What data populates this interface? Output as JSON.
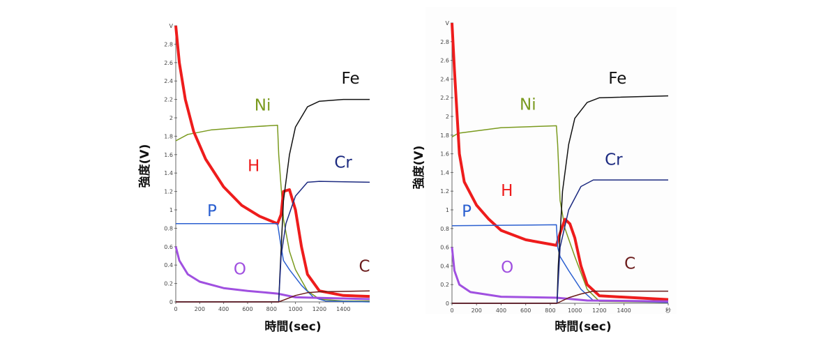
{
  "chart_data": [
    {
      "type": "line",
      "title": "",
      "xlabel": "時間(sec)",
      "ylabel": "強度(V)",
      "xlim": [
        0,
        1620
      ],
      "ylim": [
        0,
        3.0
      ],
      "xticks": [
        "0",
        "200",
        "400",
        "600",
        "800",
        "1000",
        "1200",
        "1400"
      ],
      "xtick_values": [
        0,
        200,
        400,
        600,
        800,
        1000,
        1200,
        1400
      ],
      "yticks": [
        "0",
        "0.2",
        "0.4",
        "0.6",
        "0.8",
        "1",
        "1.2",
        "1.4",
        "1.6",
        "1.8",
        "2",
        "2.2",
        "2.4",
        "2.6",
        "2.8",
        "V"
      ],
      "ytick_values": [
        0,
        0.2,
        0.4,
        0.6,
        0.8,
        1,
        1.2,
        1.4,
        1.6,
        1.8,
        2,
        2.2,
        2.4,
        2.6,
        2.8,
        3.0
      ],
      "grid": false,
      "series": [
        {
          "name": "Ni",
          "color": "#7a9a1e",
          "width": 1.5,
          "label_at": [
            657,
            2.08
          ],
          "points": [
            [
              0,
              1.75
            ],
            [
              100,
              1.82
            ],
            [
              300,
              1.87
            ],
            [
              600,
              1.9
            ],
            [
              850,
              1.92
            ],
            [
              860,
              1.6
            ],
            [
              900,
              0.9
            ],
            [
              950,
              0.55
            ],
            [
              1000,
              0.35
            ],
            [
              1100,
              0.12
            ],
            [
              1200,
              0.03
            ],
            [
              1400,
              0.01
            ],
            [
              1620,
              0.01
            ]
          ]
        },
        {
          "name": "H",
          "color": "#ee1c1c",
          "width": 4,
          "label_at": [
            600,
            1.42
          ],
          "points": [
            [
              0,
              3.0
            ],
            [
              30,
              2.6
            ],
            [
              80,
              2.2
            ],
            [
              150,
              1.85
            ],
            [
              250,
              1.55
            ],
            [
              400,
              1.25
            ],
            [
              550,
              1.05
            ],
            [
              700,
              0.93
            ],
            [
              850,
              0.85
            ],
            [
              880,
              0.95
            ],
            [
              900,
              1.2
            ],
            [
              950,
              1.22
            ],
            [
              1000,
              1.0
            ],
            [
              1050,
              0.6
            ],
            [
              1100,
              0.3
            ],
            [
              1200,
              0.12
            ],
            [
              1400,
              0.07
            ],
            [
              1620,
              0.06
            ]
          ]
        },
        {
          "name": "P",
          "color": "#2a5fd0",
          "width": 1.5,
          "label_at": [
            262,
            0.93
          ],
          "points": [
            [
              0,
              0.85
            ],
            [
              850,
              0.85
            ],
            [
              880,
              0.6
            ],
            [
              900,
              0.45
            ],
            [
              950,
              0.35
            ],
            [
              1050,
              0.18
            ],
            [
              1150,
              0.05
            ],
            [
              1250,
              0.01
            ],
            [
              1620,
              0.0
            ]
          ]
        },
        {
          "name": "O",
          "color": "#a050e0",
          "width": 3,
          "label_at": [
            483,
            0.3
          ],
          "points": [
            [
              0,
              0.6
            ],
            [
              30,
              0.45
            ],
            [
              100,
              0.3
            ],
            [
              200,
              0.22
            ],
            [
              400,
              0.15
            ],
            [
              600,
              0.12
            ],
            [
              850,
              0.09
            ],
            [
              1000,
              0.05
            ],
            [
              1620,
              0.03
            ]
          ]
        },
        {
          "name": "Fe",
          "color": "#111111",
          "width": 1.5,
          "label_at": [
            1384,
            2.37
          ],
          "points": [
            [
              0,
              0
            ],
            [
              860,
              0
            ],
            [
              870,
              0.3
            ],
            [
              900,
              1.1
            ],
            [
              950,
              1.6
            ],
            [
              1000,
              1.9
            ],
            [
              1100,
              2.12
            ],
            [
              1200,
              2.18
            ],
            [
              1400,
              2.2
            ],
            [
              1620,
              2.2
            ]
          ]
        },
        {
          "name": "Cr",
          "color": "#1c2a80",
          "width": 1.5,
          "label_at": [
            1325,
            1.46
          ],
          "points": [
            [
              0,
              0
            ],
            [
              860,
              0
            ],
            [
              880,
              0.5
            ],
            [
              920,
              0.85
            ],
            [
              1000,
              1.15
            ],
            [
              1100,
              1.3
            ],
            [
              1200,
              1.31
            ],
            [
              1620,
              1.3
            ]
          ]
        },
        {
          "name": "C",
          "color": "#6a1a1a",
          "width": 1.5,
          "label_at": [
            1530,
            0.33
          ],
          "points": [
            [
              0,
              0
            ],
            [
              860,
              0
            ],
            [
              900,
              0.02
            ],
            [
              1000,
              0.07
            ],
            [
              1100,
              0.1
            ],
            [
              1200,
              0.11
            ],
            [
              1620,
              0.12
            ]
          ]
        }
      ]
    },
    {
      "type": "line",
      "title": "",
      "xlabel": "時間(sec)",
      "ylabel": "強度(V)",
      "xlim": [
        0,
        1760
      ],
      "ylim": [
        0,
        3.0
      ],
      "xticks": [
        "0",
        "200",
        "400",
        "600",
        "800",
        "1000",
        "1200",
        "1400",
        "秒"
      ],
      "xtick_values": [
        0,
        200,
        400,
        600,
        800,
        1000,
        1200,
        1400,
        1760
      ],
      "yticks": [
        "0",
        "0.2",
        "0.4",
        "0.6",
        "0.8",
        "1",
        "1.2",
        "1.4",
        "1.6",
        "1.8",
        "2",
        "2.2",
        "2.4",
        "2.6",
        "2.8",
        "V"
      ],
      "ytick_values": [
        0,
        0.2,
        0.4,
        0.6,
        0.8,
        1,
        1.2,
        1.4,
        1.6,
        1.8,
        2,
        2.2,
        2.4,
        2.6,
        2.8,
        3.0
      ],
      "grid": false,
      "series": [
        {
          "name": "Ni",
          "color": "#7a9a1e",
          "width": 1.5,
          "label_at": [
            551,
            2.07
          ],
          "points": [
            [
              0,
              1.78
            ],
            [
              50,
              1.82
            ],
            [
              400,
              1.88
            ],
            [
              850,
              1.9
            ],
            [
              860,
              1.7
            ],
            [
              880,
              1.1
            ],
            [
              920,
              0.8
            ],
            [
              1000,
              0.5
            ],
            [
              1100,
              0.15
            ],
            [
              1200,
              0.02
            ],
            [
              1760,
              0.01
            ]
          ]
        },
        {
          "name": "H",
          "color": "#ee1c1c",
          "width": 4,
          "label_at": [
            398,
            1.15
          ],
          "points": [
            [
              0,
              3.0
            ],
            [
              20,
              2.5
            ],
            [
              60,
              1.6
            ],
            [
              100,
              1.3
            ],
            [
              200,
              1.05
            ],
            [
              300,
              0.9
            ],
            [
              400,
              0.78
            ],
            [
              600,
              0.68
            ],
            [
              850,
              0.62
            ],
            [
              880,
              0.75
            ],
            [
              920,
              0.9
            ],
            [
              960,
              0.85
            ],
            [
              1000,
              0.7
            ],
            [
              1050,
              0.4
            ],
            [
              1100,
              0.2
            ],
            [
              1200,
              0.08
            ],
            [
              1760,
              0.04
            ]
          ]
        },
        {
          "name": "P",
          "color": "#2a5fd0",
          "width": 1.5,
          "label_at": [
            80,
            0.93
          ],
          "points": [
            [
              0,
              0.83
            ],
            [
              850,
              0.84
            ],
            [
              860,
              0.6
            ],
            [
              880,
              0.5
            ],
            [
              950,
              0.35
            ],
            [
              1050,
              0.15
            ],
            [
              1150,
              0.03
            ],
            [
              1760,
              0.01
            ]
          ]
        },
        {
          "name": "O",
          "color": "#a050e0",
          "width": 3,
          "label_at": [
            398,
            0.33
          ],
          "points": [
            [
              0,
              0.6
            ],
            [
              20,
              0.35
            ],
            [
              60,
              0.2
            ],
            [
              150,
              0.12
            ],
            [
              400,
              0.07
            ],
            [
              850,
              0.06
            ],
            [
              1100,
              0.03
            ],
            [
              1760,
              0.02
            ]
          ]
        },
        {
          "name": "Fe",
          "color": "#111111",
          "width": 1.5,
          "label_at": [
            1273,
            2.35
          ],
          "points": [
            [
              0,
              0
            ],
            [
              855,
              0
            ],
            [
              865,
              0.4
            ],
            [
              900,
              1.2
            ],
            [
              950,
              1.7
            ],
            [
              1000,
              1.98
            ],
            [
              1100,
              2.15
            ],
            [
              1200,
              2.2
            ],
            [
              1760,
              2.22
            ]
          ]
        },
        {
          "name": "Cr",
          "color": "#1c2a80",
          "width": 1.5,
          "label_at": [
            1244,
            1.48
          ],
          "points": [
            [
              0,
              0
            ],
            [
              855,
              0
            ],
            [
              880,
              0.6
            ],
            [
              950,
              1.0
            ],
            [
              1050,
              1.25
            ],
            [
              1150,
              1.32
            ],
            [
              1760,
              1.32
            ]
          ]
        },
        {
          "name": "C",
          "color": "#6a1a1a",
          "width": 1.5,
          "label_at": [
            1403,
            0.37
          ],
          "points": [
            [
              0,
              0
            ],
            [
              855,
              0
            ],
            [
              950,
              0.06
            ],
            [
              1050,
              0.1
            ],
            [
              1150,
              0.13
            ],
            [
              1760,
              0.13
            ]
          ]
        }
      ]
    }
  ]
}
